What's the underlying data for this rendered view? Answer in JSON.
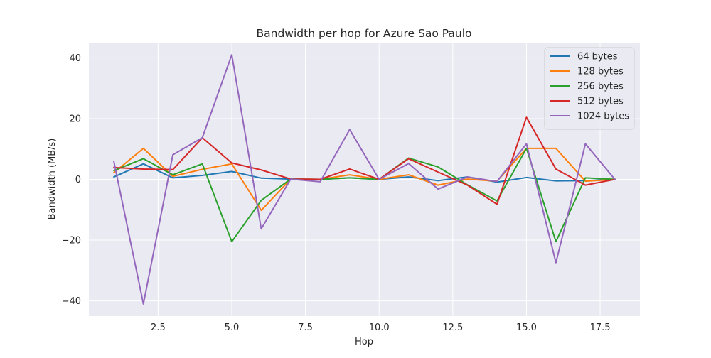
{
  "chart_data": {
    "type": "line",
    "title": "Bandwidth per hop for Azure Sao Paulo",
    "xlabel": "Hop",
    "ylabel": "Bandwidth (MB/s)",
    "xlim": [
      0.15,
      18.85
    ],
    "ylim": [
      -45,
      45
    ],
    "xticks": [
      2.5,
      5.0,
      7.5,
      10.0,
      12.5,
      15.0,
      17.5
    ],
    "xtick_labels": [
      "2.5",
      "5.0",
      "7.5",
      "10.0",
      "12.5",
      "15.0",
      "17.5"
    ],
    "yticks": [
      -40,
      -20,
      0,
      20,
      40
    ],
    "ytick_labels": [
      "−40",
      "−20",
      "0",
      "20",
      "40"
    ],
    "grid": true,
    "legend_position": "top-right",
    "x": [
      1,
      2,
      3,
      4,
      5,
      6,
      7,
      8,
      9,
      10,
      11,
      12,
      13,
      14,
      15,
      16,
      17,
      18
    ],
    "series": [
      {
        "name": "64 bytes",
        "color": "#1f77b4",
        "values": [
          0.8,
          5.1,
          0.5,
          1.3,
          2.6,
          0.4,
          0.1,
          0.0,
          0.5,
          0.0,
          0.8,
          -0.4,
          0.8,
          -0.9,
          0.6,
          -0.5,
          -0.4,
          0.0
        ]
      },
      {
        "name": "128 bytes",
        "color": "#ff7f0e",
        "values": [
          2.2,
          10.2,
          1.0,
          3.3,
          5.1,
          -10.2,
          0.1,
          0.0,
          1.5,
          0.0,
          1.5,
          -1.9,
          0.1,
          -0.6,
          10.2,
          10.2,
          -0.6,
          0.0
        ]
      },
      {
        "name": "256 bytes",
        "color": "#2ca02c",
        "values": [
          2.9,
          6.8,
          1.5,
          5.1,
          -20.5,
          -6.9,
          0.1,
          0.0,
          0.5,
          0.0,
          7.0,
          4.1,
          -1.8,
          -7.1,
          10.2,
          -20.5,
          0.5,
          0.0
        ]
      },
      {
        "name": "512 bytes",
        "color": "#d62728",
        "values": [
          3.9,
          3.4,
          3.2,
          13.7,
          5.4,
          3.1,
          0.1,
          0.0,
          3.4,
          0.0,
          6.8,
          2.4,
          -1.9,
          -8.2,
          20.4,
          3.4,
          -1.9,
          0.0
        ]
      },
      {
        "name": "1024 bytes",
        "color": "#9467bd",
        "values": [
          5.8,
          -41.0,
          8.1,
          13.7,
          41.0,
          -16.3,
          0.1,
          -0.8,
          16.4,
          0.0,
          5.2,
          -3.2,
          0.8,
          -0.7,
          11.7,
          -27.4,
          11.7,
          0.0
        ]
      }
    ]
  }
}
